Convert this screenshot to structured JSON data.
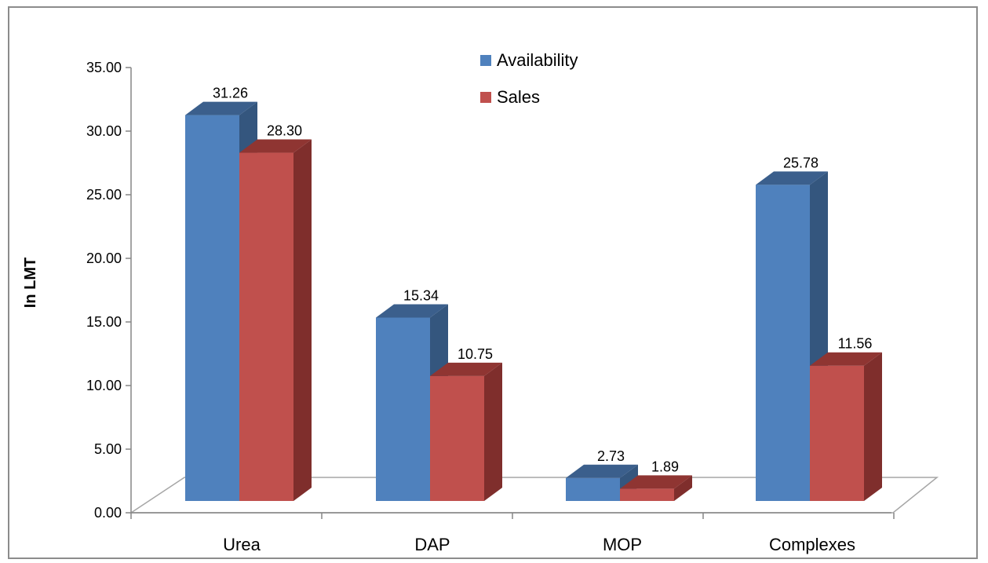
{
  "chart_data": {
    "type": "bar",
    "categories": [
      "Urea",
      "DAP",
      "MOP",
      "Complexes"
    ],
    "series": [
      {
        "name": "Availability",
        "values": [
          31.26,
          15.34,
          2.73,
          25.78
        ],
        "color": "#4f81bd",
        "side_color": "#34567e",
        "top_color": "#3b5f8c"
      },
      {
        "name": "Sales",
        "values": [
          28.3,
          10.75,
          1.89,
          11.56
        ],
        "color": "#c0504d",
        "side_color": "#7f2e2c",
        "top_color": "#8f3532"
      }
    ],
    "data_labels": [
      [
        "31.26",
        "15.34",
        "2.73",
        "25.78"
      ],
      [
        "28.30",
        "10.75",
        "1.89",
        "11.56"
      ]
    ],
    "title": "",
    "xlabel": "",
    "ylabel": "In LMT",
    "ylim": [
      0,
      35
    ],
    "yticks": [
      "0.00",
      "5.00",
      "10.00",
      "15.00",
      "20.00",
      "25.00",
      "30.00",
      "35.00"
    ],
    "legend": {
      "position": "top-center"
    },
    "grid": false,
    "style": "3d-clustered-column"
  }
}
